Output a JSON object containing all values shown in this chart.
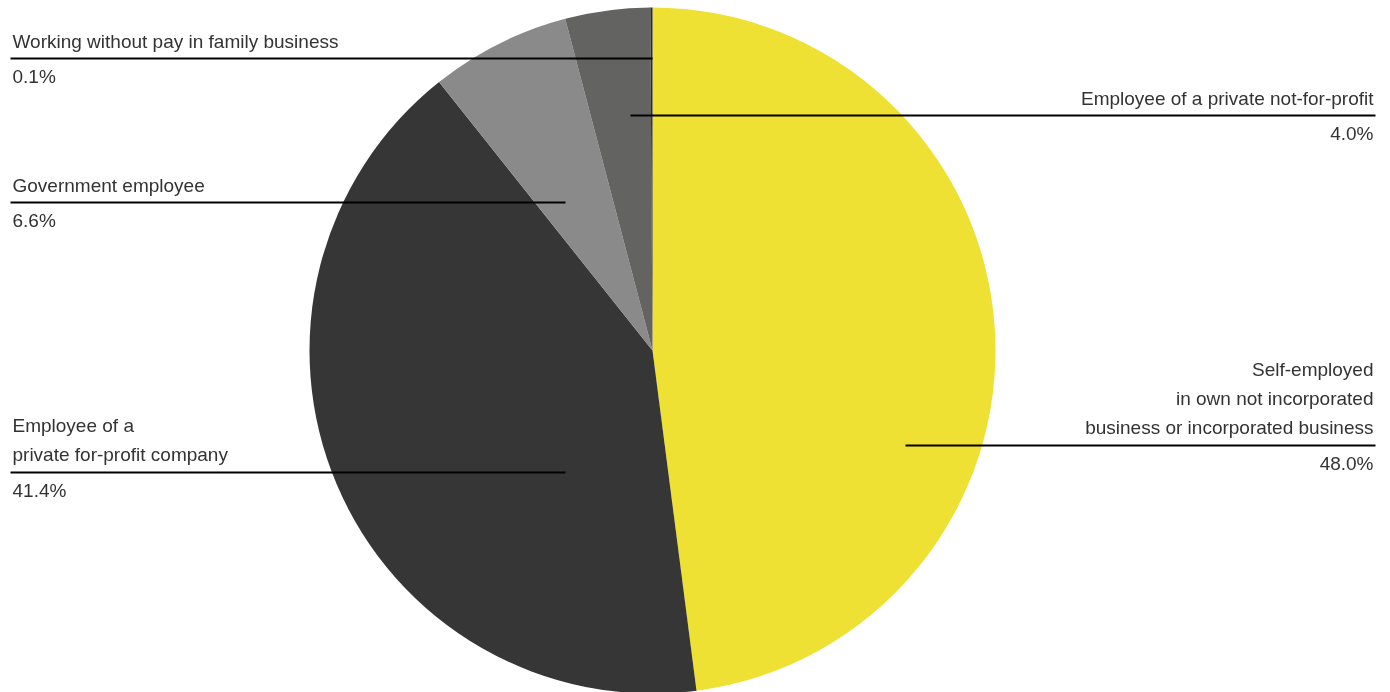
{
  "chart_data": {
    "type": "pie",
    "categories": [
      "Self-employed\nin own not incorporated\nbusiness or incorporated business",
      "Employee of a\nprivate for-profit company",
      "Government employee",
      "Employee of a private not-for-profit",
      "Working without pay in family business"
    ],
    "values": [
      48.0,
      41.4,
      6.6,
      4.0,
      0.1
    ],
    "value_labels": [
      "48.0%",
      "41.4%",
      "6.6%",
      "4.0%",
      "0.1%"
    ],
    "colors": [
      "#eee133",
      "#363636",
      "#8a8a8a",
      "#636462",
      "#2a2a2a"
    ]
  }
}
